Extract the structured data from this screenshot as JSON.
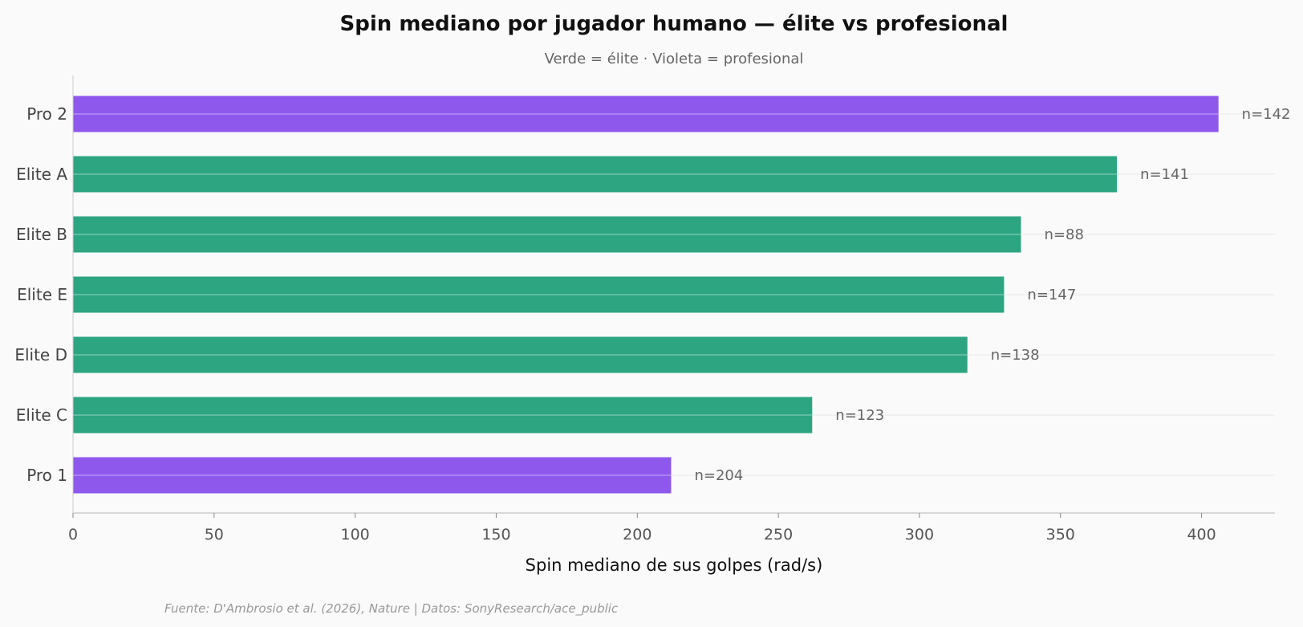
{
  "chart_data": {
    "type": "bar",
    "orientation": "horizontal",
    "title": "Spin mediano por jugador humano — élite vs profesional",
    "subtitle": "Verde = élite · Violeta = profesional",
    "xlabel": "Spin mediano de sus golpes (rad/s)",
    "ylabel": "",
    "xlim": [
      0,
      426
    ],
    "xticks": [
      0,
      50,
      100,
      150,
      200,
      250,
      300,
      350,
      400
    ],
    "grid": "horizontal lines at categories",
    "categories": [
      "Pro 2",
      "Elite A",
      "Elite B",
      "Elite E",
      "Elite D",
      "Elite C",
      "Pro 1"
    ],
    "values": [
      406,
      370,
      336,
      330,
      317,
      262,
      212
    ],
    "groups": [
      "profesional",
      "élite",
      "élite",
      "élite",
      "élite",
      "élite",
      "profesional"
    ],
    "annotations": [
      "n=142",
      "n=141",
      "n=88",
      "n=147",
      "n=138",
      "n=123",
      "n=204"
    ],
    "colors": {
      "élite": "#2ca580",
      "profesional": "#8e58ed"
    },
    "footer": "Fuente: D'Ambrosio et al. (2026), Nature | Datos: SonyResearch/ace_public"
  }
}
